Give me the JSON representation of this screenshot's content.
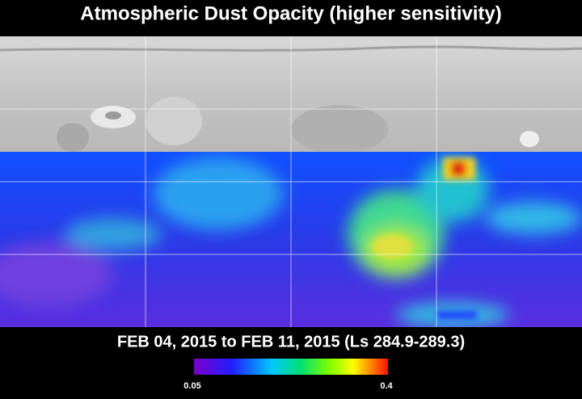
{
  "title": "Atmospheric Dust Opacity (higher sensitivity)",
  "subtitle": "FEB 04, 2015 to FEB 11, 2015 (Ls 284.9-289.3)",
  "colorbar": {
    "min": 0.05,
    "max": 0.4
  }
}
